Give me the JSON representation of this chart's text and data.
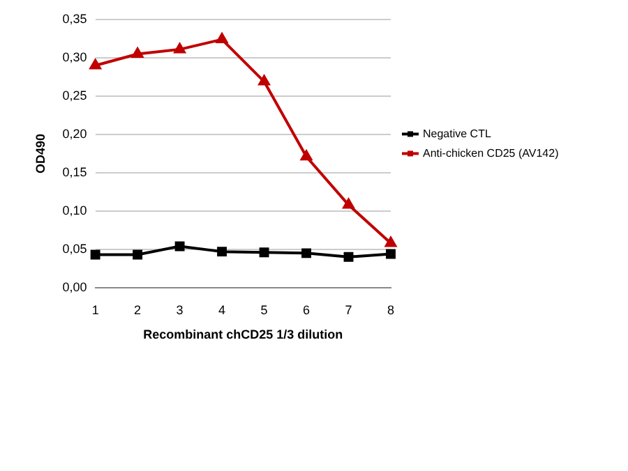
{
  "chart_data": {
    "type": "line",
    "xlabel": "Recombinant chCD25 1/3 dilution",
    "ylabel": "OD490",
    "categories": [
      "1",
      "2",
      "3",
      "4",
      "5",
      "6",
      "7",
      "8"
    ],
    "series": [
      {
        "name": "Negative CTL",
        "color": "#000000",
        "marker": "square",
        "values": [
          0.043,
          0.043,
          0.054,
          0.047,
          0.046,
          0.045,
          0.04,
          0.044
        ]
      },
      {
        "name": "Anti-chicken CD25 (AV142)",
        "color": "#c00000",
        "marker": "triangle",
        "values": [
          0.29,
          0.305,
          0.311,
          0.324,
          0.269,
          0.171,
          0.108,
          0.058
        ]
      }
    ],
    "ylim": [
      0,
      0.35
    ],
    "yticks": [
      {
        "value": 0,
        "label": "0,00"
      },
      {
        "value": 0.05,
        "label": "0,05"
      },
      {
        "value": 0.1,
        "label": "0,10"
      },
      {
        "value": 0.15,
        "label": "0,15"
      },
      {
        "value": 0.2,
        "label": "0,20"
      },
      {
        "value": 0.25,
        "label": "0,25"
      },
      {
        "value": 0.3,
        "label": "0,30"
      },
      {
        "value": 0.35,
        "label": "0,35"
      }
    ],
    "grid": "y",
    "legend": "right",
    "line_style": "solid"
  }
}
